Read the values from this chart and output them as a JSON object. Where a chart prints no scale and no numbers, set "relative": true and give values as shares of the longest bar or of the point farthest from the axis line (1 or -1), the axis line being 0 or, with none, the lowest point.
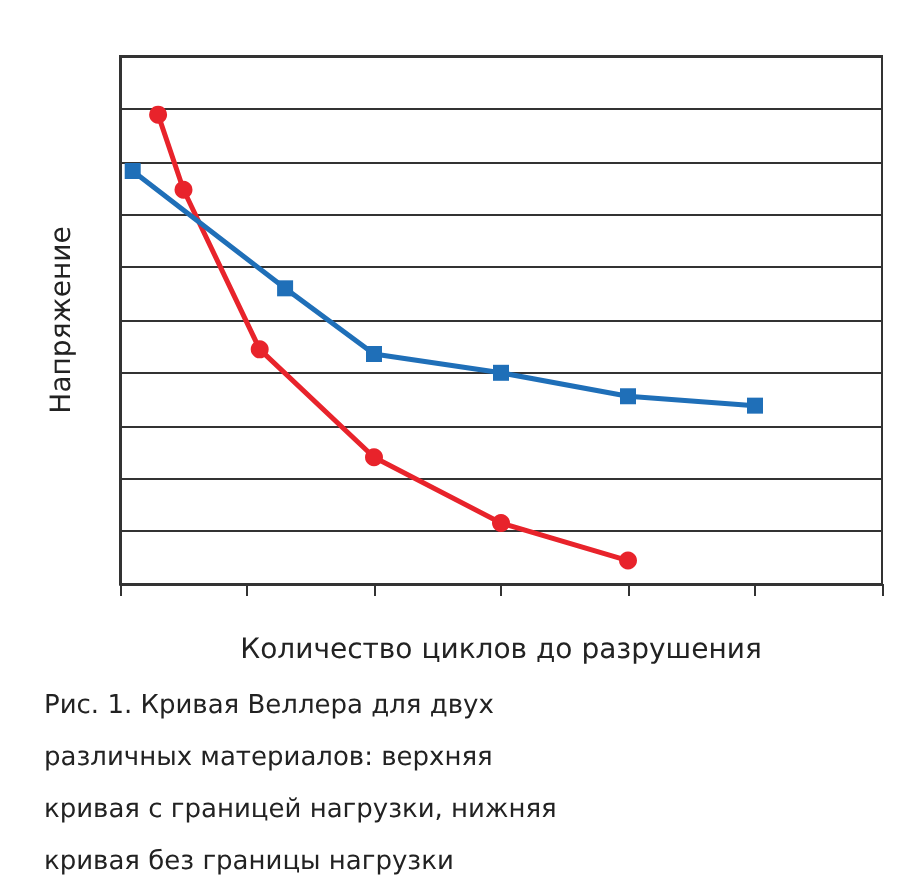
{
  "chart_data": {
    "type": "line",
    "relative": true,
    "xlabel": "Количество циклов до разрушения",
    "ylabel": "Напряжение",
    "annotations": [
      "Рис. 1. Кривая Веллера для двух различных материалов: верхняя кривая с границей нагрузки, нижняя кривая без границы нагрузки"
    ],
    "grid": "y",
    "categories": [
      null,
      null,
      null,
      null,
      null,
      null,
      null,
      null,
      null,
      null,
      null,
      null,
      null,
      null,
      null,
      null,
      null,
      null,
      null,
      null,
      null,
      null,
      null,
      null,
      null,
      null,
      null,
      null,
      null,
      null,
      null,
      null,
      null,
      null,
      null,
      null,
      null,
      null,
      null,
      null,
      null,
      null,
      null,
      null,
      null,
      null,
      null,
      null,
      null,
      null,
      null,
      null,
      null,
      null,
      null,
      null,
      null,
      null,
      null,
      null,
      null
    ],
    "series": [
      {
        "color": "#e8232b",
        "marker": "circle",
        "values": [
          null,
          null,
          null,
          1,
          null,
          0.84,
          null,
          null,
          null,
          null,
          null,
          0.5,
          null,
          null,
          null,
          null,
          null,
          null,
          null,
          null,
          0.27,
          null,
          null,
          null,
          null,
          null,
          null,
          null,
          null,
          null,
          0.13,
          null,
          null,
          null,
          null,
          null,
          null,
          null,
          null,
          null,
          0.05,
          null,
          null,
          null,
          null,
          null,
          null,
          null,
          null,
          null,
          null,
          null,
          null,
          null,
          null,
          null,
          null,
          null,
          null,
          null,
          null
        ]
      },
      {
        "color": "#1f6fb8",
        "marker": "square",
        "values": [
          null,
          0.88,
          null,
          null,
          null,
          null,
          null,
          null,
          null,
          null,
          null,
          null,
          null,
          0.63,
          null,
          null,
          null,
          null,
          null,
          null,
          0.49,
          null,
          null,
          null,
          null,
          null,
          null,
          null,
          null,
          null,
          0.45,
          null,
          null,
          null,
          null,
          null,
          null,
          null,
          null,
          null,
          0.4,
          null,
          null,
          null,
          null,
          null,
          null,
          null,
          null,
          null,
          0.38,
          null,
          null,
          null,
          null,
          null,
          null,
          null,
          null,
          null,
          null
        ]
      }
    ]
  }
}
